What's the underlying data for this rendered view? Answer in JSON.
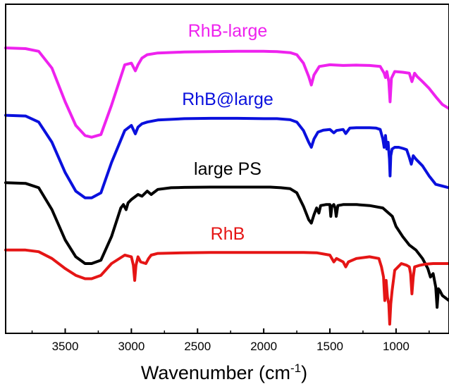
{
  "chart_data": {
    "type": "line",
    "title": "",
    "xlabel": "Wavenumber (cm",
    "xlabel_sup": "-1",
    "xlabel_close": ")",
    "ylabel": "",
    "xlim": [
      3950,
      600
    ],
    "x_reversed": true,
    "y_ticks_shown": false,
    "grid": false,
    "x_ticks": [
      {
        "value": 3500,
        "label": "3500"
      },
      {
        "value": 3000,
        "label": "3000"
      },
      {
        "value": 2500,
        "label": "2500"
      },
      {
        "value": 2000,
        "label": "2000"
      },
      {
        "value": 1500,
        "label": "1500"
      },
      {
        "value": 1000,
        "label": "1000"
      }
    ],
    "series": [
      {
        "name": "RhB-large",
        "color": "#ee22ee",
        "x": [
          3950,
          3800,
          3700,
          3600,
          3500,
          3420,
          3350,
          3300,
          3230,
          3150,
          3050,
          3000,
          2970,
          2950,
          2920,
          2880,
          2800,
          2600,
          2400,
          2200,
          2000,
          1900,
          1800,
          1750,
          1700,
          1660,
          1640,
          1620,
          1580,
          1500,
          1400,
          1300,
          1200,
          1120,
          1090,
          1080,
          1070,
          1055,
          1045,
          1035,
          1010,
          950,
          900,
          880,
          860,
          840,
          800,
          750,
          700,
          650,
          600
        ],
        "y": [
          0.82,
          0.818,
          0.81,
          0.76,
          0.66,
          0.59,
          0.56,
          0.555,
          0.563,
          0.65,
          0.77,
          0.775,
          0.752,
          0.77,
          0.79,
          0.8,
          0.805,
          0.808,
          0.809,
          0.81,
          0.81,
          0.809,
          0.806,
          0.8,
          0.775,
          0.735,
          0.71,
          0.74,
          0.765,
          0.77,
          0.768,
          0.769,
          0.768,
          0.765,
          0.745,
          0.732,
          0.75,
          0.72,
          0.66,
          0.73,
          0.75,
          0.748,
          0.745,
          0.72,
          0.745,
          0.735,
          0.72,
          0.7,
          0.675,
          0.652,
          0.64
        ]
      },
      {
        "name": "RhB@large",
        "color": "#0a10dd",
        "x": [
          3950,
          3800,
          3700,
          3600,
          3500,
          3420,
          3350,
          3300,
          3230,
          3150,
          3050,
          3000,
          2970,
          2950,
          2920,
          2880,
          2800,
          2600,
          2400,
          2200,
          2000,
          1900,
          1800,
          1750,
          1700,
          1660,
          1640,
          1620,
          1590,
          1550,
          1500,
          1470,
          1450,
          1400,
          1380,
          1350,
          1300,
          1200,
          1150,
          1120,
          1100,
          1090,
          1080,
          1070,
          1060,
          1050,
          1045,
          1040,
          1030,
          1010,
          980,
          950,
          920,
          900,
          885,
          870,
          850,
          800,
          750,
          700,
          650,
          600
        ],
        "y": [
          0.62,
          0.618,
          0.6,
          0.54,
          0.45,
          0.395,
          0.375,
          0.375,
          0.39,
          0.48,
          0.575,
          0.59,
          0.565,
          0.585,
          0.595,
          0.6,
          0.606,
          0.61,
          0.611,
          0.611,
          0.61,
          0.61,
          0.607,
          0.6,
          0.575,
          0.54,
          0.525,
          0.55,
          0.57,
          0.576,
          0.578,
          0.568,
          0.575,
          0.578,
          0.566,
          0.582,
          0.583,
          0.583,
          0.582,
          0.578,
          0.55,
          0.525,
          0.56,
          0.52,
          0.54,
          0.49,
          0.44,
          0.5,
          0.52,
          0.525,
          0.525,
          0.522,
          0.518,
          0.495,
          0.475,
          0.5,
          0.49,
          0.47,
          0.44,
          0.415,
          0.41,
          0.405
        ]
      },
      {
        "name": "large PS",
        "color": "#000000",
        "x": [
          3950,
          3800,
          3700,
          3600,
          3500,
          3420,
          3350,
          3300,
          3230,
          3150,
          3080,
          3060,
          3040,
          3025,
          3000,
          2950,
          2920,
          2880,
          2850,
          2800,
          2700,
          2600,
          2400,
          2200,
          2000,
          1950,
          1870,
          1800,
          1750,
          1700,
          1660,
          1640,
          1620,
          1600,
          1583,
          1570,
          1530,
          1500,
          1493,
          1485,
          1470,
          1460,
          1452,
          1440,
          1400,
          1300,
          1200,
          1100,
          1028,
          1000,
          950,
          900,
          850,
          800,
          760,
          740,
          720,
          700,
          690,
          680,
          670,
          650,
          600
        ],
        "y": [
          0.42,
          0.418,
          0.405,
          0.34,
          0.25,
          0.2,
          0.18,
          0.18,
          0.19,
          0.26,
          0.345,
          0.355,
          0.34,
          0.36,
          0.37,
          0.385,
          0.38,
          0.395,
          0.385,
          0.4,
          0.405,
          0.406,
          0.407,
          0.407,
          0.407,
          0.407,
          0.405,
          0.402,
          0.39,
          0.35,
          0.31,
          0.3,
          0.325,
          0.345,
          0.33,
          0.352,
          0.355,
          0.355,
          0.32,
          0.35,
          0.355,
          0.345,
          0.32,
          0.352,
          0.355,
          0.355,
          0.352,
          0.345,
          0.32,
          0.29,
          0.26,
          0.235,
          0.22,
          0.195,
          0.165,
          0.14,
          0.15,
          0.11,
          0.05,
          0.105,
          0.1,
          0.085,
          0.07
        ]
      },
      {
        "name": "RhB",
        "color": "#e51515",
        "x": [
          3950,
          3800,
          3700,
          3600,
          3500,
          3420,
          3350,
          3300,
          3230,
          3150,
          3050,
          3000,
          2985,
          2975,
          2965,
          2950,
          2930,
          2890,
          2870,
          2850,
          2800,
          2600,
          2400,
          2200,
          2000,
          1800,
          1700,
          1600,
          1500,
          1470,
          1450,
          1400,
          1380,
          1360,
          1300,
          1200,
          1130,
          1110,
          1095,
          1085,
          1075,
          1065,
          1055,
          1048,
          1040,
          1030,
          1010,
          960,
          920,
          900,
          890,
          880,
          870,
          860,
          820,
          780,
          720,
          650,
          600
        ],
        "y": [
          0.22,
          0.22,
          0.215,
          0.195,
          0.165,
          0.145,
          0.135,
          0.135,
          0.145,
          0.18,
          0.205,
          0.2,
          0.175,
          0.13,
          0.175,
          0.2,
          0.185,
          0.18,
          0.195,
          0.205,
          0.21,
          0.212,
          0.213,
          0.213,
          0.213,
          0.213,
          0.213,
          0.212,
          0.205,
          0.185,
          0.195,
          0.185,
          0.17,
          0.185,
          0.195,
          0.2,
          0.195,
          0.17,
          0.14,
          0.07,
          0.13,
          0.08,
          0.06,
          0.0,
          0.06,
          0.1,
          0.16,
          0.18,
          0.175,
          0.17,
          0.15,
          0.09,
          0.14,
          0.17,
          0.175,
          0.178,
          0.18,
          0.18,
          0.18
        ]
      }
    ]
  }
}
